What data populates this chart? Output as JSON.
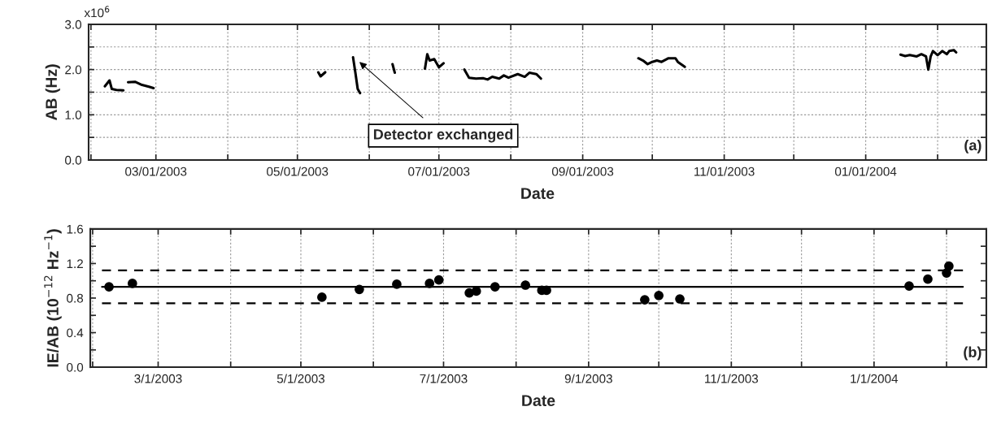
{
  "chart_data": [
    {
      "type": "line",
      "xlabel": "Date",
      "ylabel": "AB (Hz)",
      "xlim": [
        "2003-01-31",
        "2004-02-22"
      ],
      "xticks": [
        {
          "value": "2003-02-01",
          "label": null
        },
        {
          "value": "2003-03-01",
          "label": "03/01/2003"
        },
        {
          "value": "2003-04-01",
          "label": null
        },
        {
          "value": "2003-05-01",
          "label": "05/01/2003"
        },
        {
          "value": "2003-06-01",
          "label": null
        },
        {
          "value": "2003-07-01",
          "label": "07/01/2003"
        },
        {
          "value": "2003-08-01",
          "label": null
        },
        {
          "value": "2003-09-01",
          "label": "09/01/2003"
        },
        {
          "value": "2003-10-01",
          "label": null
        },
        {
          "value": "2003-11-01",
          "label": "11/01/2003"
        },
        {
          "value": "2003-12-01",
          "label": null
        },
        {
          "value": "2004-01-01",
          "label": "01/01/2004"
        },
        {
          "value": "2004-02-01",
          "label": null
        }
      ],
      "ylim": [
        0,
        3.0
      ],
      "yticks": [
        {
          "value": 0,
          "label": "0.0"
        },
        {
          "value": 0.5,
          "label": null
        },
        {
          "value": 1.0,
          "label": "1.0"
        },
        {
          "value": 1.5,
          "label": null
        },
        {
          "value": 2.0,
          "label": "2.0"
        },
        {
          "value": 2.5,
          "label": null
        },
        {
          "value": 3.0,
          "label": "3.0"
        }
      ],
      "grid": true,
      "series": [
        {
          "color": "#000000",
          "x": [
            "2003-02-07",
            "2003-02-09",
            "2003-02-10",
            "2003-02-12",
            "2003-02-15",
            "2003-02-16",
            "2003-02-17",
            "2003-02-20",
            "2003-02-23",
            "2003-02-26",
            "2003-02-28",
            "2003-03-15",
            "2003-05-10",
            "2003-05-11",
            "2003-05-13",
            "2003-05-19",
            "2003-05-25",
            "2003-05-26",
            "2003-05-27",
            "2003-05-28",
            "2003-06-05",
            "2003-06-11",
            "2003-06-12",
            "2003-06-18",
            "2003-06-25",
            "2003-06-26",
            "2003-06-27",
            "2003-06-29",
            "2003-07-01",
            "2003-07-03",
            "2003-07-07",
            "2003-07-12",
            "2003-07-14",
            "2003-07-17",
            "2003-07-20",
            "2003-07-22",
            "2003-07-24",
            "2003-07-27",
            "2003-07-29",
            "2003-07-31",
            "2003-08-04",
            "2003-08-07",
            "2003-08-09",
            "2003-08-12",
            "2003-08-14",
            "2003-09-01",
            "2003-09-25",
            "2003-09-27",
            "2003-09-29",
            "2003-10-01",
            "2003-10-03",
            "2003-10-05",
            "2003-10-08",
            "2003-10-11",
            "2003-10-12",
            "2003-10-15",
            "2003-12-01",
            "2004-01-16",
            "2004-01-18",
            "2004-01-20",
            "2004-01-23",
            "2004-01-25",
            "2004-01-27",
            "2004-01-28",
            "2004-01-29",
            "2004-01-30",
            "2004-02-01",
            "2004-02-03",
            "2004-02-05",
            "2004-02-06",
            "2004-02-08",
            "2004-02-09"
          ],
          "values": [
            1.63,
            1.76,
            1.57,
            1.55,
            1.54,
            null,
            1.72,
            1.73,
            1.66,
            1.62,
            1.59,
            null,
            1.94,
            1.85,
            1.94,
            null,
            2.27,
            1.93,
            1.57,
            1.48,
            null,
            2.12,
            1.93,
            null,
            2.02,
            2.34,
            2.2,
            2.23,
            2.05,
            2.14,
            null,
            2.0,
            1.82,
            1.8,
            1.81,
            1.78,
            1.84,
            1.8,
            1.87,
            1.82,
            1.9,
            1.84,
            1.93,
            1.9,
            1.8,
            null,
            2.25,
            2.2,
            2.12,
            2.17,
            2.2,
            2.17,
            2.25,
            2.25,
            2.17,
            2.06,
            null,
            2.33,
            2.3,
            2.32,
            2.29,
            2.34,
            2.29,
            2.0,
            2.29,
            2.41,
            2.32,
            2.41,
            2.34,
            2.41,
            2.43,
            2.38
          ]
        }
      ],
      "annotations": [
        {
          "text": "Detector exchanged",
          "x": "2003-05-27",
          "y": 2.2
        },
        "x10$^{6}$",
        "(a)"
      ]
    },
    {
      "type": "scatter",
      "xlabel": "Date",
      "ylabel": "IE/AB (10$^{−12}$ Hz$^{−1}$)",
      "xlim": [
        "2003-01-31",
        "2004-02-18"
      ],
      "xticks": [
        {
          "value": "2003-02-01",
          "label": null
        },
        {
          "value": "2003-03-01",
          "label": "3/1/2003"
        },
        {
          "value": "2003-04-01",
          "label": null
        },
        {
          "value": "2003-05-01",
          "label": "5/1/2003"
        },
        {
          "value": "2003-06-01",
          "label": null
        },
        {
          "value": "2003-07-01",
          "label": "7/1/2003"
        },
        {
          "value": "2003-08-01",
          "label": null
        },
        {
          "value": "2003-09-01",
          "label": "9/1/2003"
        },
        {
          "value": "2003-10-01",
          "label": null
        },
        {
          "value": "2003-11-01",
          "label": "11/1/2003"
        },
        {
          "value": "2003-12-01",
          "label": null
        },
        {
          "value": "2004-01-01",
          "label": "1/1/2004"
        },
        {
          "value": "2004-02-01",
          "label": null
        }
      ],
      "ylim": [
        0,
        1.6
      ],
      "yticks": [
        {
          "value": 0,
          "label": "0.0"
        },
        {
          "value": 0.2,
          "label": null
        },
        {
          "value": 0.4,
          "label": "0.4"
        },
        {
          "value": 0.6,
          "label": null
        },
        {
          "value": 0.8,
          "label": "0.8"
        },
        {
          "value": 1.0,
          "label": null
        },
        {
          "value": 1.2,
          "label": "1.2"
        },
        {
          "value": 1.4,
          "label": null
        },
        {
          "value": 1.6,
          "label": "1.6"
        }
      ],
      "grid": "x",
      "series": [
        {
          "type": "scatter",
          "marker": "circle",
          "color": "#000000",
          "x": [
            "2003-02-08",
            "2003-02-18",
            "2003-05-10",
            "2003-05-26",
            "2003-06-11",
            "2003-06-25",
            "2003-06-29",
            "2003-07-12",
            "2003-07-15",
            "2003-07-23",
            "2003-08-05",
            "2003-08-12",
            "2003-08-14",
            "2003-09-25",
            "2003-10-01",
            "2003-10-10",
            "2004-01-16",
            "2004-01-24",
            "2004-02-01",
            "2004-02-02"
          ],
          "values": [
            0.93,
            0.97,
            0.81,
            0.9,
            0.96,
            0.97,
            1.01,
            0.86,
            0.88,
            0.93,
            0.95,
            0.89,
            0.89,
            0.78,
            0.83,
            0.79,
            0.94,
            1.02,
            1.09,
            1.17
          ]
        },
        {
          "type": "line",
          "line_style": "solid",
          "color": "#000000",
          "x": [
            "2003-02-05",
            "2004-02-08"
          ],
          "values": [
            0.93,
            0.93
          ]
        },
        {
          "type": "line",
          "line_style": "dashed",
          "color": "#000000",
          "x": [
            "2003-02-05",
            "2004-02-08"
          ],
          "values": [
            1.12,
            1.12
          ]
        },
        {
          "type": "line",
          "line_style": "dashed",
          "color": "#000000",
          "x": [
            "2003-02-05",
            "2004-02-08"
          ],
          "values": [
            0.74,
            0.74
          ]
        }
      ],
      "annotations": [
        "(b)"
      ]
    }
  ]
}
